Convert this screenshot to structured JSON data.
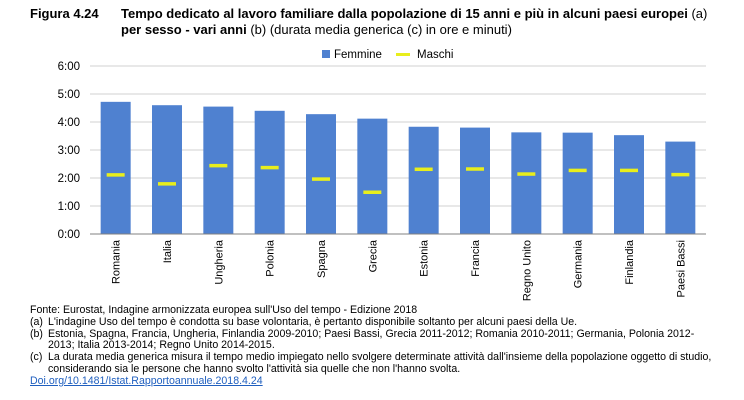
{
  "figure": {
    "label": "Figura 4.24",
    "title_bold_1": "Tempo dedicato al lavoro familiare dalla popolazione di 15 anni e più in alcuni paesi europei",
    "title_a": " (a) ",
    "title_bold_2": "per sesso - vari anni",
    "title_rest": " (b) (durata media generica (c) in ore e minuti)"
  },
  "colors": {
    "femmine": "#4f81d0",
    "maschi": "#e8ee1c",
    "grid": "#d0d0d0",
    "doi": "#1f5fbf"
  },
  "chart_data": {
    "type": "bar",
    "categories": [
      "Romania",
      "Italia",
      "Ungheria",
      "Polonia",
      "Spagna",
      "Grecia",
      "Estonia",
      "Francia",
      "Regno Unito",
      "Germania",
      "Finlandia",
      "Paesi Bassi"
    ],
    "series": [
      {
        "name": "Femmine",
        "type": "bar",
        "values": [
          4.72,
          4.6,
          4.55,
          4.4,
          4.28,
          4.12,
          3.83,
          3.8,
          3.63,
          3.62,
          3.53,
          3.3
        ]
      },
      {
        "name": "Maschi",
        "type": "marker",
        "values": [
          2.12,
          1.8,
          2.45,
          2.38,
          1.97,
          1.5,
          2.32,
          2.33,
          2.15,
          2.28,
          2.28,
          2.13
        ]
      }
    ],
    "ylim": [
      0,
      6
    ],
    "yticks": [
      "0:00",
      "1:00",
      "2:00",
      "3:00",
      "4:00",
      "5:00",
      "6:00"
    ],
    "legend_position": "top-center",
    "grid": true
  },
  "notes": {
    "source": "Fonte: Eurostat, Indagine armonizzata europea sull'Uso del tempo - Edizione 2018",
    "a_marker": "(a)",
    "a_text": "L'indagine Uso del tempo è condotta su base volontaria, è pertanto disponibile soltanto per alcuni paesi della Ue.",
    "b_marker": "(b)",
    "b_text": "Estonia, Spagna, Francia, Ungheria, Finlandia 2009-2010; Paesi Bassi, Grecia 2011-2012; Romania 2010-2011; Germania, Polonia 2012-2013; Italia 2013-2014; Regno Unito 2014-2015.",
    "c_marker": "(c)",
    "c_text": "La durata media generica misura il tempo medio impiegato nello svolgere determinate attività dall'insieme della popolazione oggetto di studio, considerando sia le persone che hanno svolto l'attività sia quelle che non l'hanno svolta.",
    "doi": "Doi.org/10.1481/Istat.Rapportoannuale.2018.4.24"
  }
}
